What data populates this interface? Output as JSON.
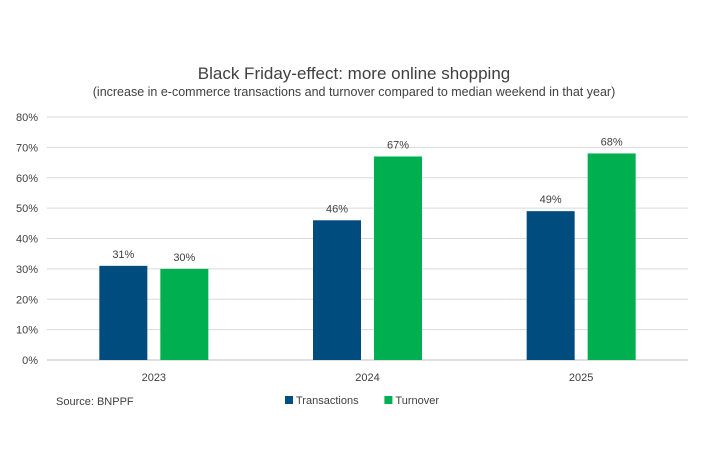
{
  "chart_data": {
    "type": "bar",
    "title": "Black Friday-effect: more online shopping",
    "subtitle": "(increase in e-commerce transactions and turnover compared to median weekend in that year)",
    "categories": [
      "2023",
      "2024",
      "2025"
    ],
    "series": [
      {
        "name": "Transactions",
        "values": [
          31,
          46,
          49
        ],
        "labels": [
          "31%",
          "46%",
          "49%"
        ],
        "color": "#004C7E"
      },
      {
        "name": "Turnover",
        "values": [
          30,
          67,
          68
        ],
        "labels": [
          "30%",
          "67%",
          "68%"
        ],
        "color": "#00B050"
      }
    ],
    "ylim": [
      0,
      80
    ],
    "yticks": [
      "0%",
      "10%",
      "20%",
      "30%",
      "40%",
      "50%",
      "60%",
      "70%",
      "80%"
    ],
    "grid": true,
    "legend": "bottom",
    "source": "Source: BNPPF"
  }
}
